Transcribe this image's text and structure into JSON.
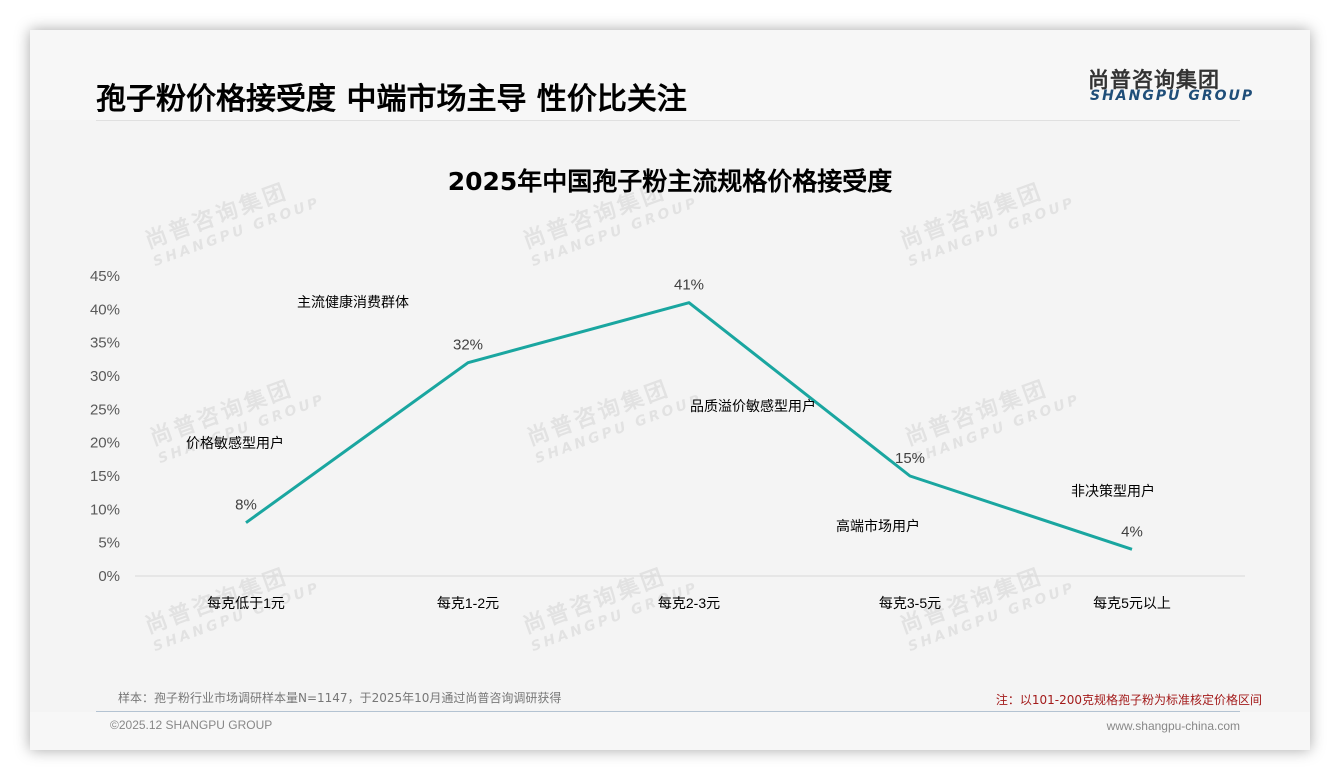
{
  "header": {
    "page_title": "孢子粉价格接受度 中端市场主导 性价比关注",
    "logo_cn": "尚普咨询集团",
    "logo_en": "SHANGPU GROUP"
  },
  "watermark": {
    "cn": "尚普咨询集团",
    "en": "SHANGPU GROUP"
  },
  "chart_data": {
    "type": "line",
    "title": "2025年中国孢子粉主流规格价格接受度",
    "categories": [
      "每克低于1元",
      "每克1-2元",
      "每克2-3元",
      "每克3-5元",
      "每克5元以上"
    ],
    "values": [
      8,
      32,
      41,
      15,
      4
    ],
    "value_labels": [
      "8%",
      "32%",
      "41%",
      "15%",
      "4%"
    ],
    "y_ticks": [
      "0%",
      "5%",
      "10%",
      "15%",
      "20%",
      "25%",
      "30%",
      "35%",
      "40%",
      "45%"
    ],
    "ylim": [
      0,
      45
    ],
    "xlabel": "",
    "ylabel": "",
    "grid": false,
    "legend": null,
    "line_color": "#1aa6a0",
    "annotations": [
      "价格敏感型用户",
      "主流健康消费群体",
      "品质溢价敏感型用户",
      "高端市场用户",
      "非决策型用户"
    ]
  },
  "footer": {
    "sample": "样本：孢子粉行业市场调研样本量N=1147，于2025年10月通过尚普咨询调研获得",
    "note": "注：以101-200克规格孢子粉为标准核定价格区间",
    "copyright": "©2025.12 SHANGPU GROUP",
    "website": "www.shangpu-china.com"
  }
}
